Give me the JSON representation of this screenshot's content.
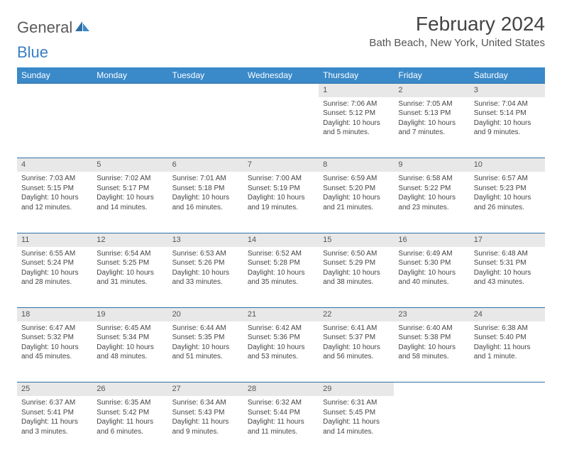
{
  "brand": {
    "part1": "General",
    "part2": "Blue"
  },
  "title": "February 2024",
  "location": "Bath Beach, New York, United States",
  "header_bg": "#3a89c9",
  "daynum_bg": "#e8e8e8",
  "border_color": "#2f6fa5",
  "weekdays": [
    "Sunday",
    "Monday",
    "Tuesday",
    "Wednesday",
    "Thursday",
    "Friday",
    "Saturday"
  ],
  "weeks": [
    [
      null,
      null,
      null,
      null,
      {
        "n": "1",
        "sunrise": "7:06 AM",
        "sunset": "5:12 PM",
        "daylight": "10 hours and 5 minutes."
      },
      {
        "n": "2",
        "sunrise": "7:05 AM",
        "sunset": "5:13 PM",
        "daylight": "10 hours and 7 minutes."
      },
      {
        "n": "3",
        "sunrise": "7:04 AM",
        "sunset": "5:14 PM",
        "daylight": "10 hours and 9 minutes."
      }
    ],
    [
      {
        "n": "4",
        "sunrise": "7:03 AM",
        "sunset": "5:15 PM",
        "daylight": "10 hours and 12 minutes."
      },
      {
        "n": "5",
        "sunrise": "7:02 AM",
        "sunset": "5:17 PM",
        "daylight": "10 hours and 14 minutes."
      },
      {
        "n": "6",
        "sunrise": "7:01 AM",
        "sunset": "5:18 PM",
        "daylight": "10 hours and 16 minutes."
      },
      {
        "n": "7",
        "sunrise": "7:00 AM",
        "sunset": "5:19 PM",
        "daylight": "10 hours and 19 minutes."
      },
      {
        "n": "8",
        "sunrise": "6:59 AM",
        "sunset": "5:20 PM",
        "daylight": "10 hours and 21 minutes."
      },
      {
        "n": "9",
        "sunrise": "6:58 AM",
        "sunset": "5:22 PM",
        "daylight": "10 hours and 23 minutes."
      },
      {
        "n": "10",
        "sunrise": "6:57 AM",
        "sunset": "5:23 PM",
        "daylight": "10 hours and 26 minutes."
      }
    ],
    [
      {
        "n": "11",
        "sunrise": "6:55 AM",
        "sunset": "5:24 PM",
        "daylight": "10 hours and 28 minutes."
      },
      {
        "n": "12",
        "sunrise": "6:54 AM",
        "sunset": "5:25 PM",
        "daylight": "10 hours and 31 minutes."
      },
      {
        "n": "13",
        "sunrise": "6:53 AM",
        "sunset": "5:26 PM",
        "daylight": "10 hours and 33 minutes."
      },
      {
        "n": "14",
        "sunrise": "6:52 AM",
        "sunset": "5:28 PM",
        "daylight": "10 hours and 35 minutes."
      },
      {
        "n": "15",
        "sunrise": "6:50 AM",
        "sunset": "5:29 PM",
        "daylight": "10 hours and 38 minutes."
      },
      {
        "n": "16",
        "sunrise": "6:49 AM",
        "sunset": "5:30 PM",
        "daylight": "10 hours and 40 minutes."
      },
      {
        "n": "17",
        "sunrise": "6:48 AM",
        "sunset": "5:31 PM",
        "daylight": "10 hours and 43 minutes."
      }
    ],
    [
      {
        "n": "18",
        "sunrise": "6:47 AM",
        "sunset": "5:32 PM",
        "daylight": "10 hours and 45 minutes."
      },
      {
        "n": "19",
        "sunrise": "6:45 AM",
        "sunset": "5:34 PM",
        "daylight": "10 hours and 48 minutes."
      },
      {
        "n": "20",
        "sunrise": "6:44 AM",
        "sunset": "5:35 PM",
        "daylight": "10 hours and 51 minutes."
      },
      {
        "n": "21",
        "sunrise": "6:42 AM",
        "sunset": "5:36 PM",
        "daylight": "10 hours and 53 minutes."
      },
      {
        "n": "22",
        "sunrise": "6:41 AM",
        "sunset": "5:37 PM",
        "daylight": "10 hours and 56 minutes."
      },
      {
        "n": "23",
        "sunrise": "6:40 AM",
        "sunset": "5:38 PM",
        "daylight": "10 hours and 58 minutes."
      },
      {
        "n": "24",
        "sunrise": "6:38 AM",
        "sunset": "5:40 PM",
        "daylight": "11 hours and 1 minute."
      }
    ],
    [
      {
        "n": "25",
        "sunrise": "6:37 AM",
        "sunset": "5:41 PM",
        "daylight": "11 hours and 3 minutes."
      },
      {
        "n": "26",
        "sunrise": "6:35 AM",
        "sunset": "5:42 PM",
        "daylight": "11 hours and 6 minutes."
      },
      {
        "n": "27",
        "sunrise": "6:34 AM",
        "sunset": "5:43 PM",
        "daylight": "11 hours and 9 minutes."
      },
      {
        "n": "28",
        "sunrise": "6:32 AM",
        "sunset": "5:44 PM",
        "daylight": "11 hours and 11 minutes."
      },
      {
        "n": "29",
        "sunrise": "6:31 AM",
        "sunset": "5:45 PM",
        "daylight": "11 hours and 14 minutes."
      },
      null,
      null
    ]
  ],
  "labels": {
    "sunrise": "Sunrise:",
    "sunset": "Sunset:",
    "daylight": "Daylight:"
  }
}
